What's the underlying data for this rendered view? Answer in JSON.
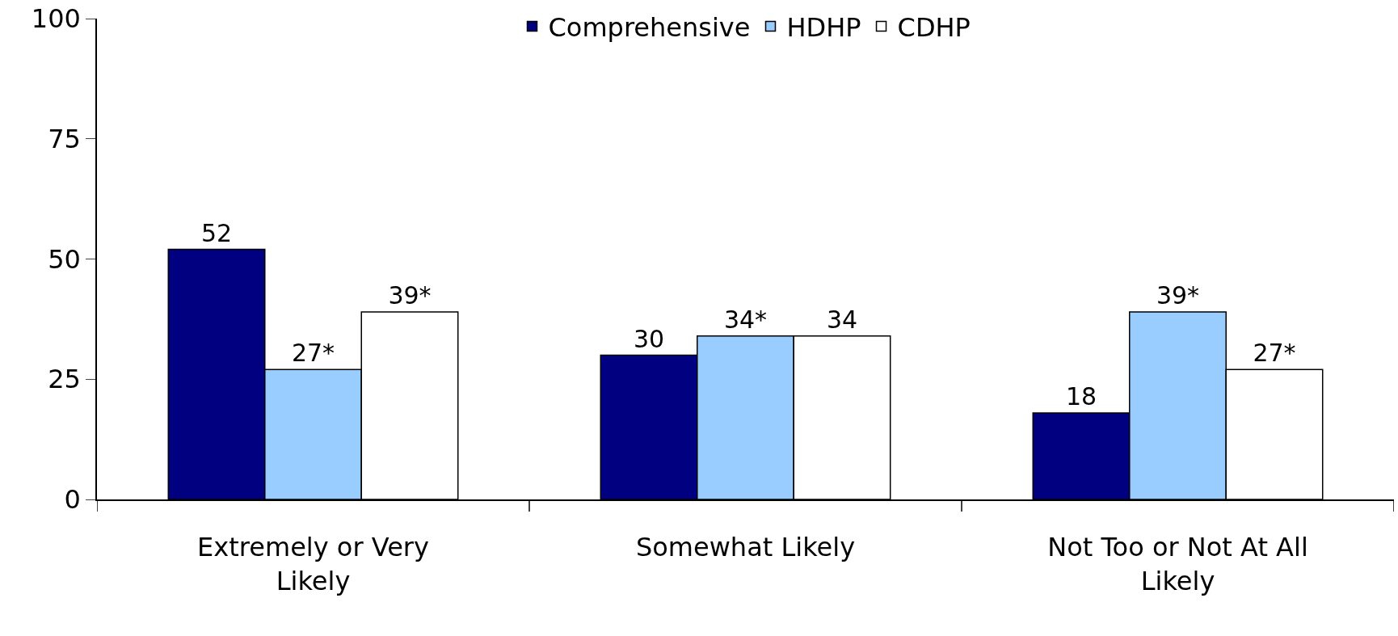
{
  "chart_data": {
    "type": "bar",
    "categories": [
      "Extremely or Very Likely",
      "Somewhat Likely",
      "Not Too or Not At All Likely"
    ],
    "series": [
      {
        "name": "Comprehensive",
        "color": "#000080",
        "values": [
          52,
          30,
          18
        ],
        "value_labels": [
          "52",
          "30",
          "18"
        ]
      },
      {
        "name": "HDHP",
        "color": "#99ccff",
        "values": [
          27,
          34,
          39
        ],
        "value_labels": [
          "27*",
          "34*",
          "39*"
        ]
      },
      {
        "name": "CDHP",
        "color": "#ffffff",
        "values": [
          39,
          34,
          27
        ],
        "value_labels": [
          "39*",
          "34",
          "27*"
        ]
      }
    ],
    "ylim": [
      0,
      100
    ],
    "yticks": [
      0,
      25,
      50,
      75,
      100
    ],
    "legend": "top"
  }
}
